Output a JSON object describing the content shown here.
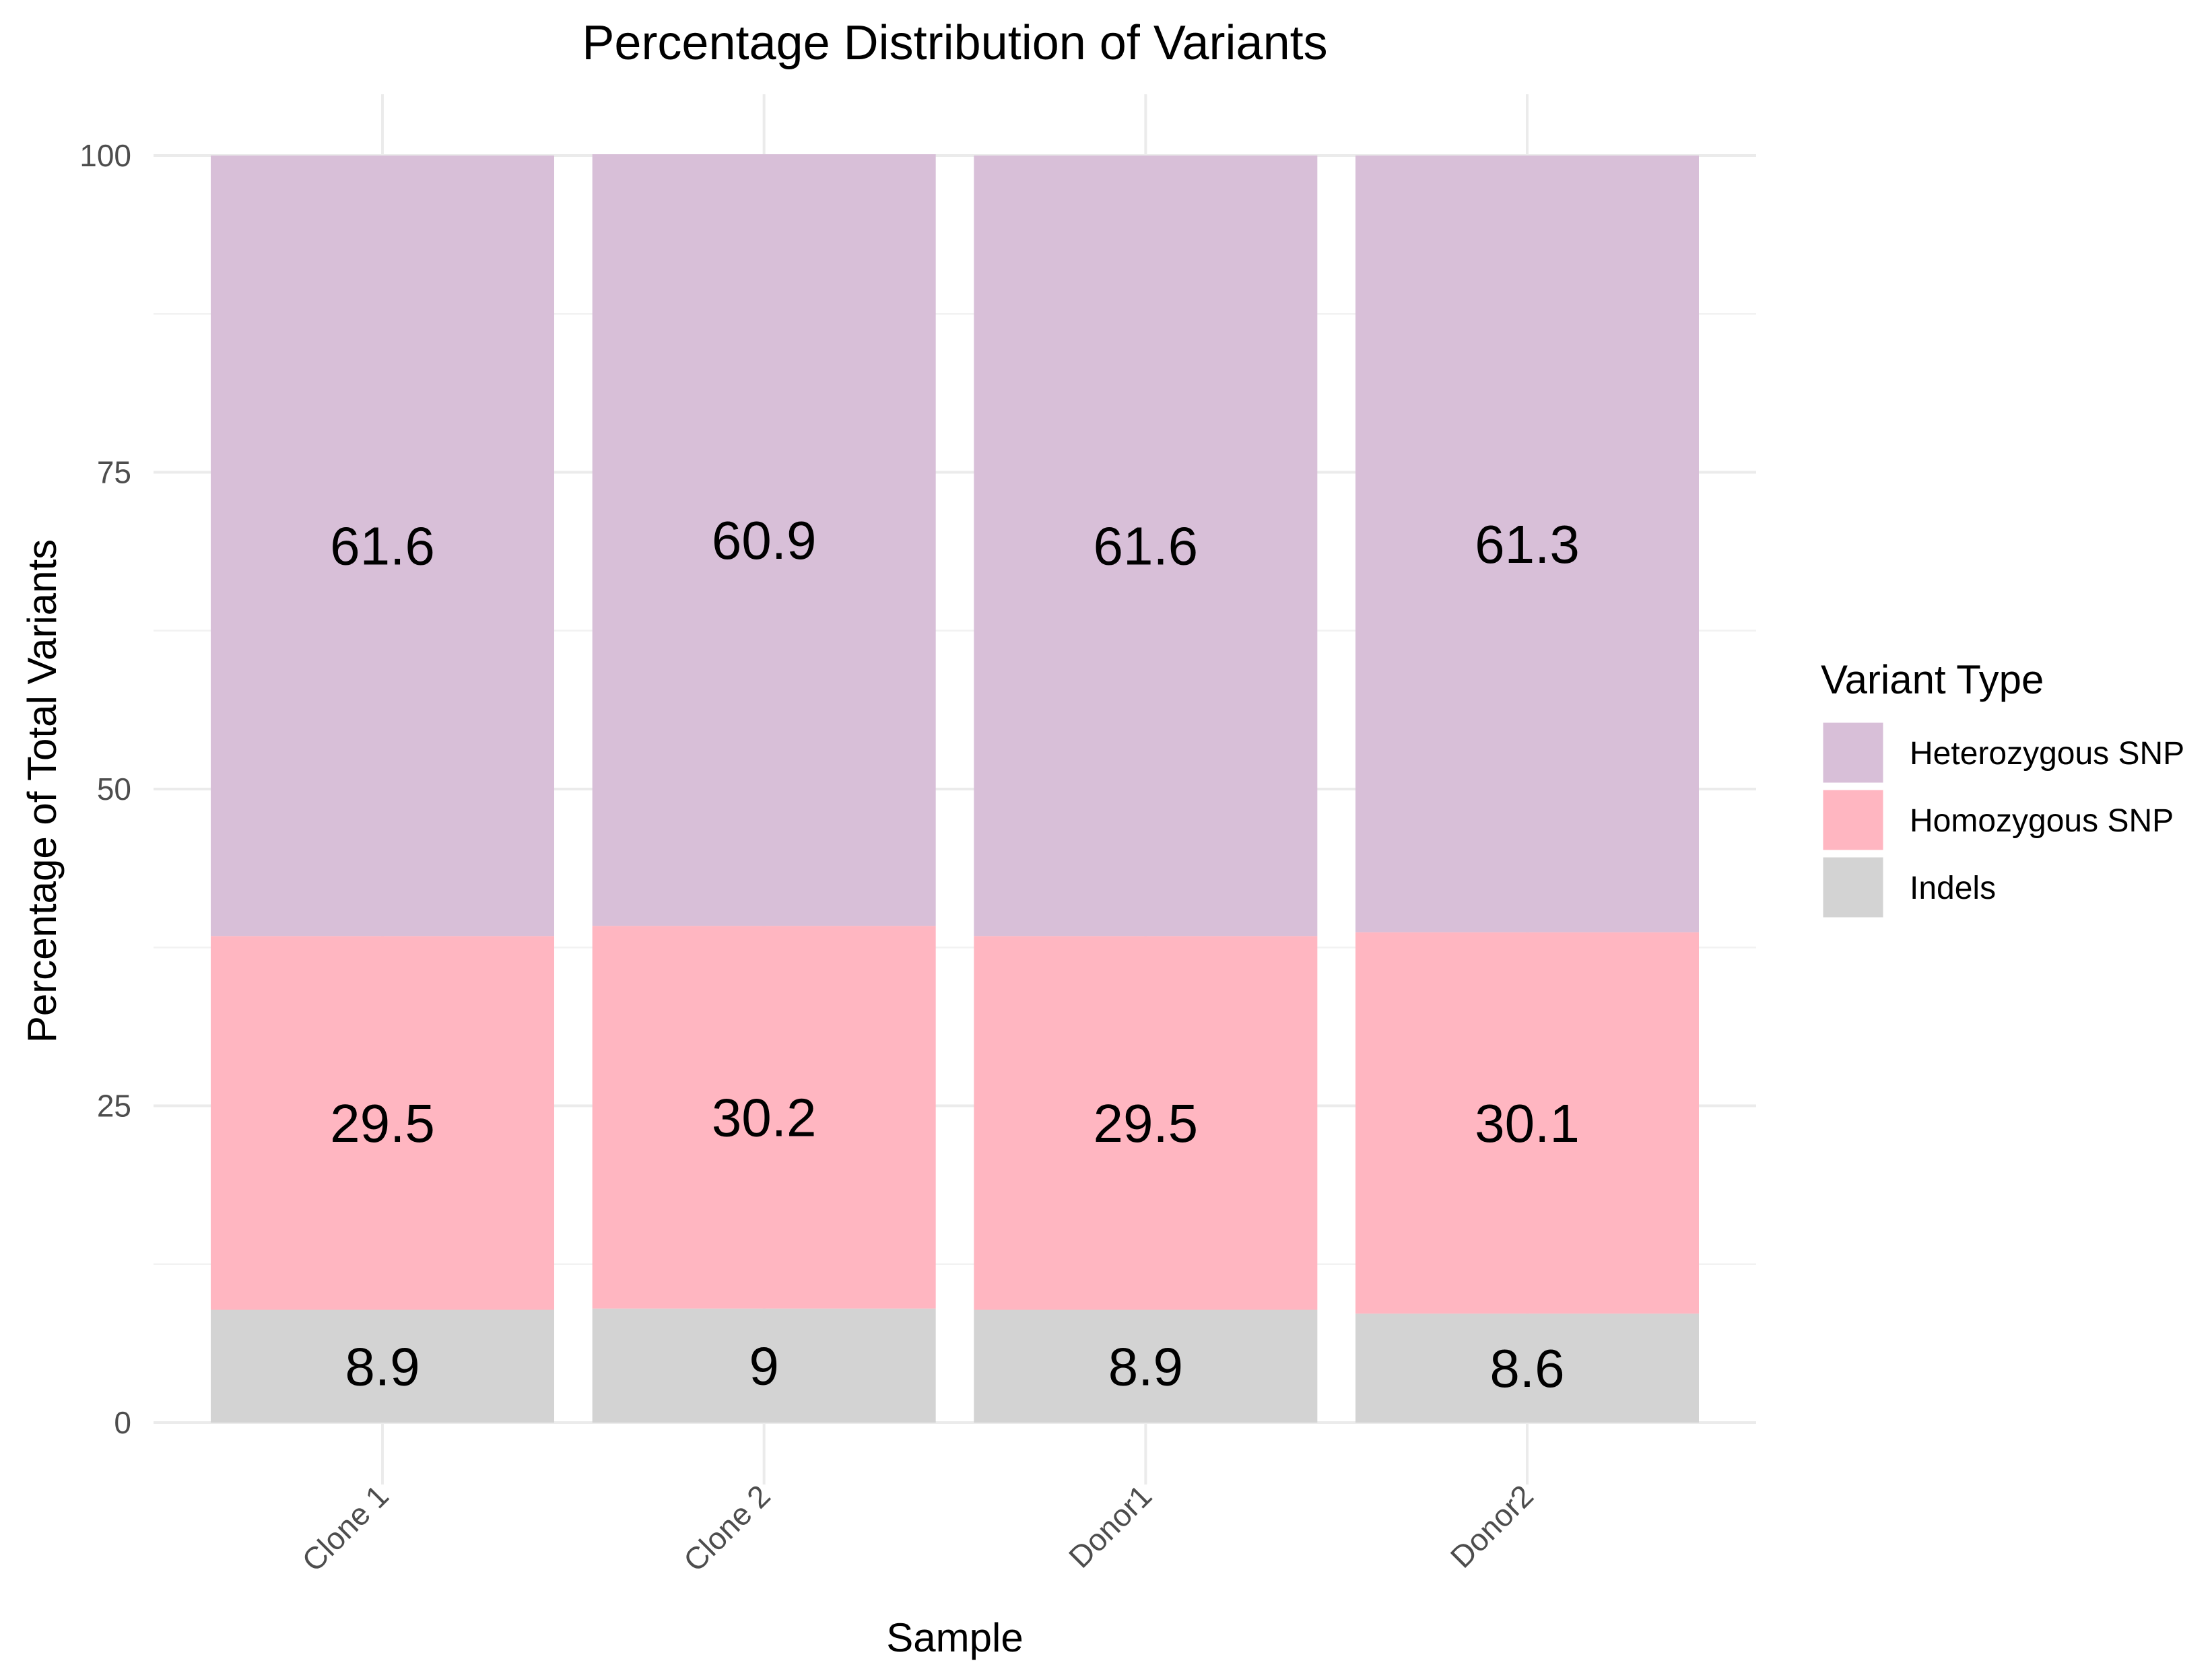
{
  "chart_data": {
    "type": "bar",
    "stacked": true,
    "title": "Percentage Distribution of Variants",
    "xlabel": "Sample",
    "ylabel": "Percentage of Total Variants",
    "categories": [
      "Clone 1",
      "Clone 2",
      "Donor1",
      "Donor2"
    ],
    "ylim": [
      0,
      100
    ],
    "yticks": [
      0,
      25,
      50,
      75,
      100
    ],
    "ytick_labels": [
      "0",
      "25",
      "50",
      "75",
      "100"
    ],
    "grid": true,
    "legend": {
      "title": "Variant Type",
      "position": "right",
      "entries": [
        "Heterozygous SNP",
        "Homozygous SNP",
        "Indels"
      ]
    },
    "series": [
      {
        "name": "Indels",
        "color": "#d3d3d3",
        "values": [
          8.9,
          9.0,
          8.9,
          8.6
        ],
        "labels": [
          "8.9",
          "9",
          "8.9",
          "8.6"
        ]
      },
      {
        "name": "Homozygous SNP",
        "color": "#ffb6c1",
        "values": [
          29.5,
          30.2,
          29.5,
          30.1
        ],
        "labels": [
          "29.5",
          "30.2",
          "29.5",
          "30.1"
        ]
      },
      {
        "name": "Heterozygous SNP",
        "color": "#d8bfd8",
        "values": [
          61.6,
          60.9,
          61.6,
          61.3
        ],
        "labels": [
          "61.6",
          "60.9",
          "61.6",
          "61.3"
        ]
      }
    ]
  }
}
